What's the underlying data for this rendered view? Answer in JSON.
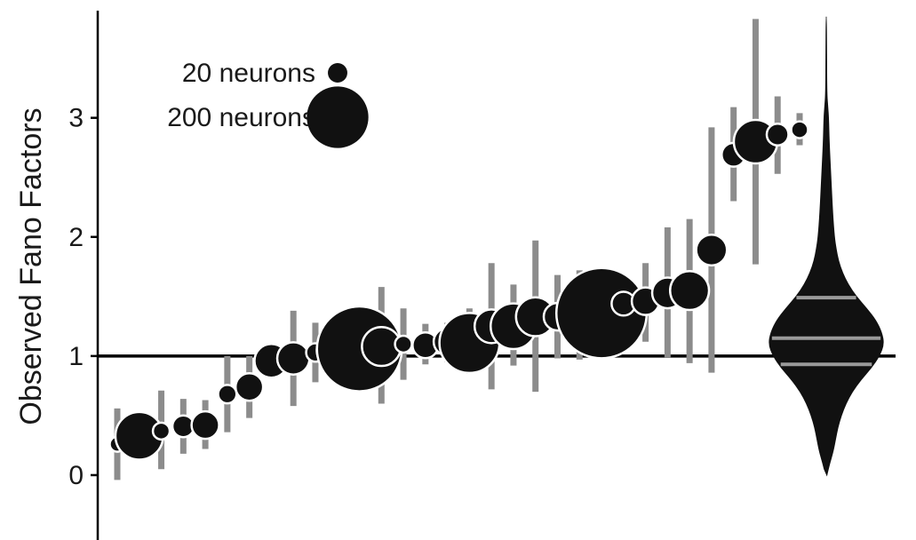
{
  "chart_data": {
    "type": "scatter",
    "title": "",
    "xlabel": "",
    "ylabel": "Observed Fano Factors",
    "ylim": [
      -0.5,
      3.9
    ],
    "yticks": [
      0,
      1,
      2,
      3
    ],
    "reference_line": 1,
    "grid": false,
    "legend": {
      "placement": "top-left",
      "entries": [
        {
          "label": "20 neurons",
          "neurons": 20
        },
        {
          "label": "200 neurons",
          "neurons": 200
        }
      ]
    },
    "colors": {
      "point": "#111111",
      "point_stroke": "#ffffff",
      "error_bar": "#8c8c8c",
      "reference_line": "#000000",
      "violin": "#111111",
      "violin_lines": "#9a9a9a"
    },
    "series": [
      {
        "kind": "points_with_error_bars",
        "points": [
          {
            "y": 0.26,
            "lo": -0.04,
            "hi": 0.56,
            "neurons": 12
          },
          {
            "y": 0.33,
            "lo": 0.18,
            "hi": 0.5,
            "neurons": 120
          },
          {
            "y": 0.37,
            "lo": 0.05,
            "hi": 0.71,
            "neurons": 15
          },
          {
            "y": 0.41,
            "lo": 0.18,
            "hi": 0.64,
            "neurons": 25
          },
          {
            "y": 0.42,
            "lo": 0.22,
            "hi": 0.63,
            "neurons": 40
          },
          {
            "y": 0.68,
            "lo": 0.36,
            "hi": 1.0,
            "neurons": 18
          },
          {
            "y": 0.74,
            "lo": 0.48,
            "hi": 1.0,
            "neurons": 40
          },
          {
            "y": 0.96,
            "lo": 0.9,
            "hi": 1.03,
            "neurons": 60
          },
          {
            "y": 0.98,
            "lo": 0.58,
            "hi": 1.38,
            "neurons": 55
          },
          {
            "y": 1.03,
            "lo": 0.78,
            "hi": 1.28,
            "neurons": 18
          },
          {
            "y": 1.05,
            "lo": 0.8,
            "hi": 1.3,
            "neurons": 90
          },
          {
            "y": 1.06,
            "lo": 0.9,
            "hi": 1.2,
            "neurons": 380
          },
          {
            "y": 1.08,
            "lo": 0.6,
            "hi": 1.58,
            "neurons": 80
          },
          {
            "y": 1.1,
            "lo": 0.8,
            "hi": 1.4,
            "neurons": 15
          },
          {
            "y": 1.09,
            "lo": 0.93,
            "hi": 1.27,
            "neurons": 35
          },
          {
            "y": 1.12,
            "lo": 0.95,
            "hi": 1.28,
            "neurons": 40
          },
          {
            "y": 1.11,
            "lo": 0.85,
            "hi": 1.4,
            "neurons": 190
          },
          {
            "y": 1.25,
            "lo": 0.72,
            "hi": 1.78,
            "neurons": 60
          },
          {
            "y": 1.25,
            "lo": 0.92,
            "hi": 1.6,
            "neurons": 110
          },
          {
            "y": 1.33,
            "lo": 0.7,
            "hi": 1.97,
            "neurons": 80
          },
          {
            "y": 1.33,
            "lo": 0.98,
            "hi": 1.68,
            "neurons": 40
          },
          {
            "y": 1.33,
            "lo": 0.97,
            "hi": 1.72,
            "neurons": 60
          },
          {
            "y": 1.36,
            "lo": 1.22,
            "hi": 1.6,
            "neurons": 430
          },
          {
            "y": 1.44,
            "lo": 1.28,
            "hi": 1.6,
            "neurons": 30
          },
          {
            "y": 1.46,
            "lo": 1.12,
            "hi": 1.78,
            "neurons": 40
          },
          {
            "y": 1.53,
            "lo": 0.99,
            "hi": 2.08,
            "neurons": 50
          },
          {
            "y": 1.55,
            "lo": 0.94,
            "hi": 2.15,
            "neurons": 80
          },
          {
            "y": 1.89,
            "lo": 0.86,
            "hi": 2.92,
            "neurons": 50
          },
          {
            "y": 2.69,
            "lo": 2.3,
            "hi": 3.09,
            "neurons": 30
          },
          {
            "y": 2.8,
            "lo": 1.77,
            "hi": 3.83,
            "neurons": 100
          },
          {
            "y": 2.86,
            "lo": 2.53,
            "hi": 3.18,
            "neurons": 25
          },
          {
            "y": 2.9,
            "lo": 2.77,
            "hi": 3.04,
            "neurons": 15
          }
        ]
      },
      {
        "kind": "violin",
        "profile": [
          {
            "y": 0.0,
            "w": 0.01
          },
          {
            "y": 0.1,
            "w": 0.06
          },
          {
            "y": 0.2,
            "w": 0.12
          },
          {
            "y": 0.3,
            "w": 0.16
          },
          {
            "y": 0.4,
            "w": 0.2
          },
          {
            "y": 0.5,
            "w": 0.26
          },
          {
            "y": 0.6,
            "w": 0.34
          },
          {
            "y": 0.7,
            "w": 0.45
          },
          {
            "y": 0.8,
            "w": 0.6
          },
          {
            "y": 0.9,
            "w": 0.78
          },
          {
            "y": 1.0,
            "w": 0.92
          },
          {
            "y": 1.1,
            "w": 1.0
          },
          {
            "y": 1.2,
            "w": 0.96
          },
          {
            "y": 1.3,
            "w": 0.86
          },
          {
            "y": 1.4,
            "w": 0.7
          },
          {
            "y": 1.5,
            "w": 0.52
          },
          {
            "y": 1.6,
            "w": 0.38
          },
          {
            "y": 1.7,
            "w": 0.28
          },
          {
            "y": 1.8,
            "w": 0.21
          },
          {
            "y": 1.9,
            "w": 0.17
          },
          {
            "y": 2.0,
            "w": 0.14
          },
          {
            "y": 2.2,
            "w": 0.11
          },
          {
            "y": 2.5,
            "w": 0.08
          },
          {
            "y": 2.8,
            "w": 0.05
          },
          {
            "y": 3.0,
            "w": 0.04
          },
          {
            "y": 3.1,
            "w": 0.025
          },
          {
            "y": 3.2,
            "w": 0.01
          },
          {
            "y": 3.5,
            "w": 0.006
          },
          {
            "y": 3.85,
            "w": 0.003
          }
        ],
        "quartiles": [
          0.93,
          1.15,
          1.49
        ]
      }
    ]
  }
}
